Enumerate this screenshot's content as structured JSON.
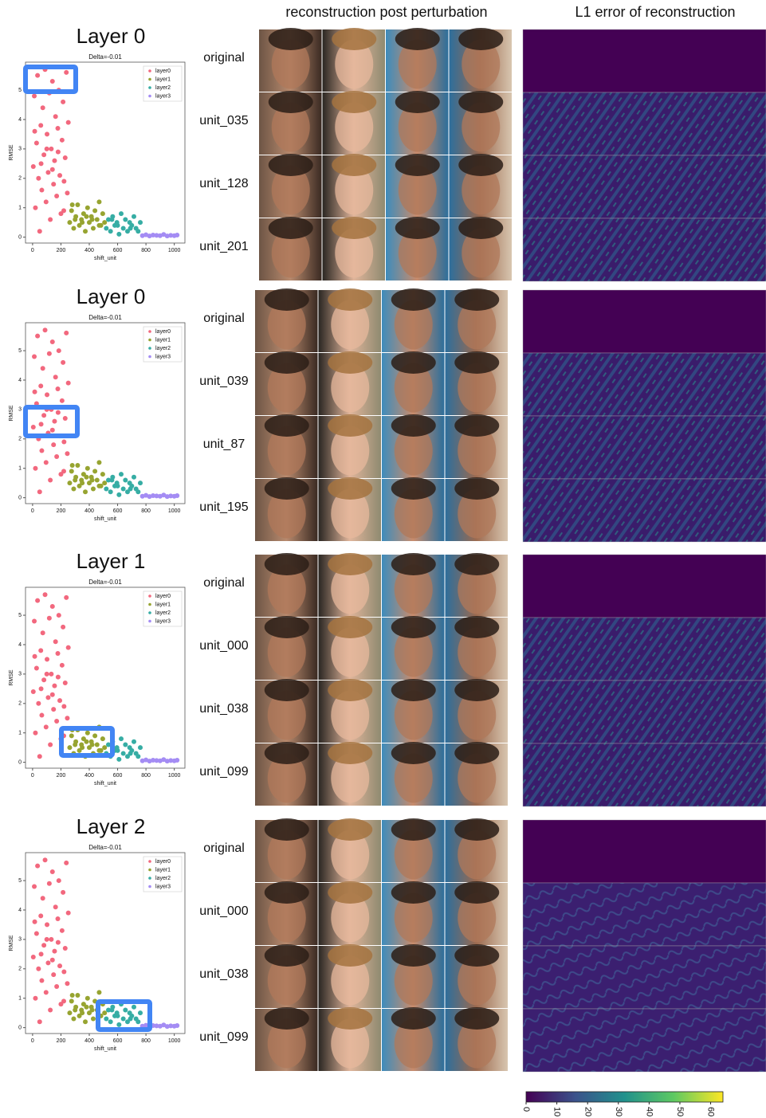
{
  "headers": [
    "reconstruction post perturbation",
    "L1 error of reconstruction"
  ],
  "scatter": {
    "type": "scatter",
    "subtitle": "Delta=-0.01",
    "x_label": "shift_unit",
    "y_label": "RMSE",
    "xlim": [
      -50,
      1075
    ],
    "ylim": [
      -0.2,
      5.95
    ],
    "xticks": [
      0,
      200,
      400,
      600,
      800,
      1000
    ],
    "yticks": [
      0,
      1,
      2,
      3,
      4,
      5
    ],
    "series": [
      {
        "name": "layer0",
        "color": "#f2687e",
        "x": [
          5,
          12,
          20,
          28,
          35,
          42,
          50,
          58,
          65,
          72,
          80,
          88,
          95,
          102,
          110,
          118,
          125,
          132,
          140,
          148,
          155,
          162,
          170,
          178,
          185,
          192,
          200,
          208,
          215,
          222,
          230,
          238,
          245,
          252,
          15,
          60,
          100,
          140,
          180,
          220
        ],
        "y": [
          2.4,
          4.8,
          1.0,
          3.2,
          5.5,
          2.0,
          0.2,
          3.8,
          1.6,
          4.4,
          2.8,
          5.7,
          1.2,
          3.5,
          2.2,
          4.9,
          0.6,
          3.0,
          5.3,
          1.8,
          2.6,
          4.1,
          1.4,
          3.7,
          5.0,
          2.1,
          0.8,
          3.3,
          4.6,
          1.9,
          2.7,
          5.6,
          1.5,
          3.9,
          3.6,
          2.5,
          3.0,
          2.3,
          2.9,
          0.9
        ]
      },
      {
        "name": "layer1",
        "color": "#97a431",
        "x": [
          262,
          275,
          290,
          305,
          318,
          330,
          345,
          360,
          372,
          388,
          400,
          415,
          428,
          440,
          455,
          470,
          482,
          495,
          508,
          300,
          350,
          420,
          470,
          280,
          380
        ],
        "y": [
          0.5,
          0.9,
          0.3,
          0.7,
          1.1,
          0.4,
          0.6,
          0.8,
          0.2,
          1.0,
          0.5,
          0.7,
          0.3,
          0.9,
          0.6,
          1.2,
          0.4,
          0.8,
          0.5,
          0.6,
          0.5,
          0.6,
          0.4,
          1.1,
          0.7
        ]
      },
      {
        "name": "layer2",
        "color": "#36ada4",
        "x": [
          520,
          535,
          550,
          565,
          580,
          595,
          610,
          625,
          640,
          655,
          670,
          685,
          700,
          715,
          730,
          745,
          760,
          600,
          690,
          560
        ],
        "y": [
          0.3,
          0.6,
          0.2,
          0.7,
          0.4,
          0.5,
          0.1,
          0.8,
          0.3,
          0.6,
          0.2,
          0.5,
          0.4,
          0.7,
          0.3,
          0.2,
          0.5,
          0.4,
          0.3,
          0.6
        ]
      },
      {
        "name": "layer3",
        "color": "#a48cf4",
        "x": [
          775,
          800,
          825,
          850,
          875,
          900,
          925,
          950,
          975,
          1000,
          1020
        ],
        "y": [
          0.05,
          0.08,
          0.04,
          0.07,
          0.06,
          0.05,
          0.09,
          0.04,
          0.06,
          0.05,
          0.07
        ]
      }
    ]
  },
  "panels": [
    {
      "title": "Layer 0",
      "rows": [
        "original",
        "unit_035",
        "unit_128",
        "unit_201"
      ]
    },
    {
      "title": "Layer 0",
      "rows": [
        "original",
        "unit_039",
        "unit_87",
        "unit_195"
      ]
    },
    {
      "title": "Layer 1",
      "rows": [
        "original",
        "unit_000",
        "unit_038",
        "unit_099"
      ]
    },
    {
      "title": "Layer 2",
      "rows": [
        "original",
        "unit_000",
        "unit_038",
        "unit_099"
      ]
    }
  ],
  "colorbar": {
    "lim": [
      0,
      64
    ],
    "ticks": [
      0,
      10,
      20,
      30,
      40,
      50,
      60
    ]
  }
}
